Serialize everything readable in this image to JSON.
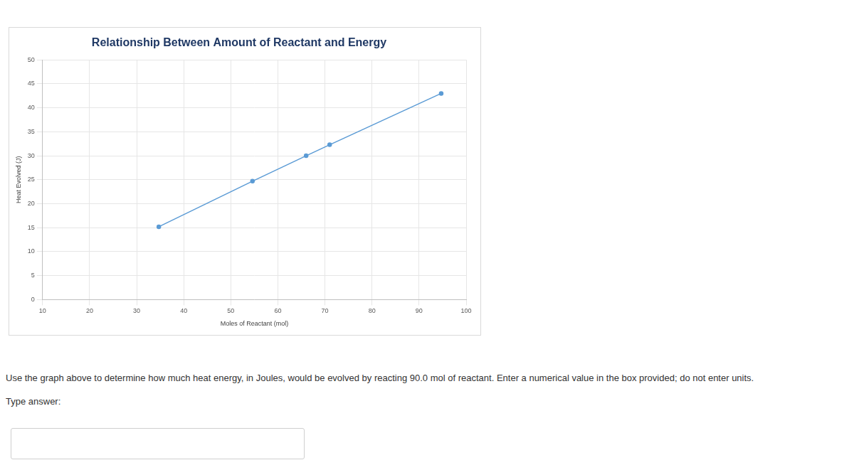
{
  "chart_data": {
    "type": "line",
    "title": "Relationship Between Amount of Reactant and Energy",
    "x_label": "Moles of Reactant (mol)",
    "y_label": "Heat Evolved (J)",
    "x": [
      34.7,
      54.6,
      66.0,
      71.0,
      94.7
    ],
    "values": [
      15.2,
      24.7,
      30.0,
      32.3,
      43.0
    ],
    "color": "#5b9bd5",
    "marker": "circle",
    "xlim": [
      10,
      100
    ],
    "xticks": [
      10,
      20,
      30,
      40,
      50,
      60,
      70,
      80,
      90,
      100
    ],
    "ylim": [
      0,
      50
    ],
    "yticks": [
      0,
      5,
      10,
      15,
      20,
      25,
      30,
      35,
      40,
      45,
      50
    ],
    "grid": true
  },
  "question": {
    "text": "Use the graph above to determine how much heat energy, in Joules, would be evolved by reacting 90.0 mol of reactant.  Enter a numerical value in the box provided; do not enter units.",
    "prompt": "Type answer:"
  }
}
